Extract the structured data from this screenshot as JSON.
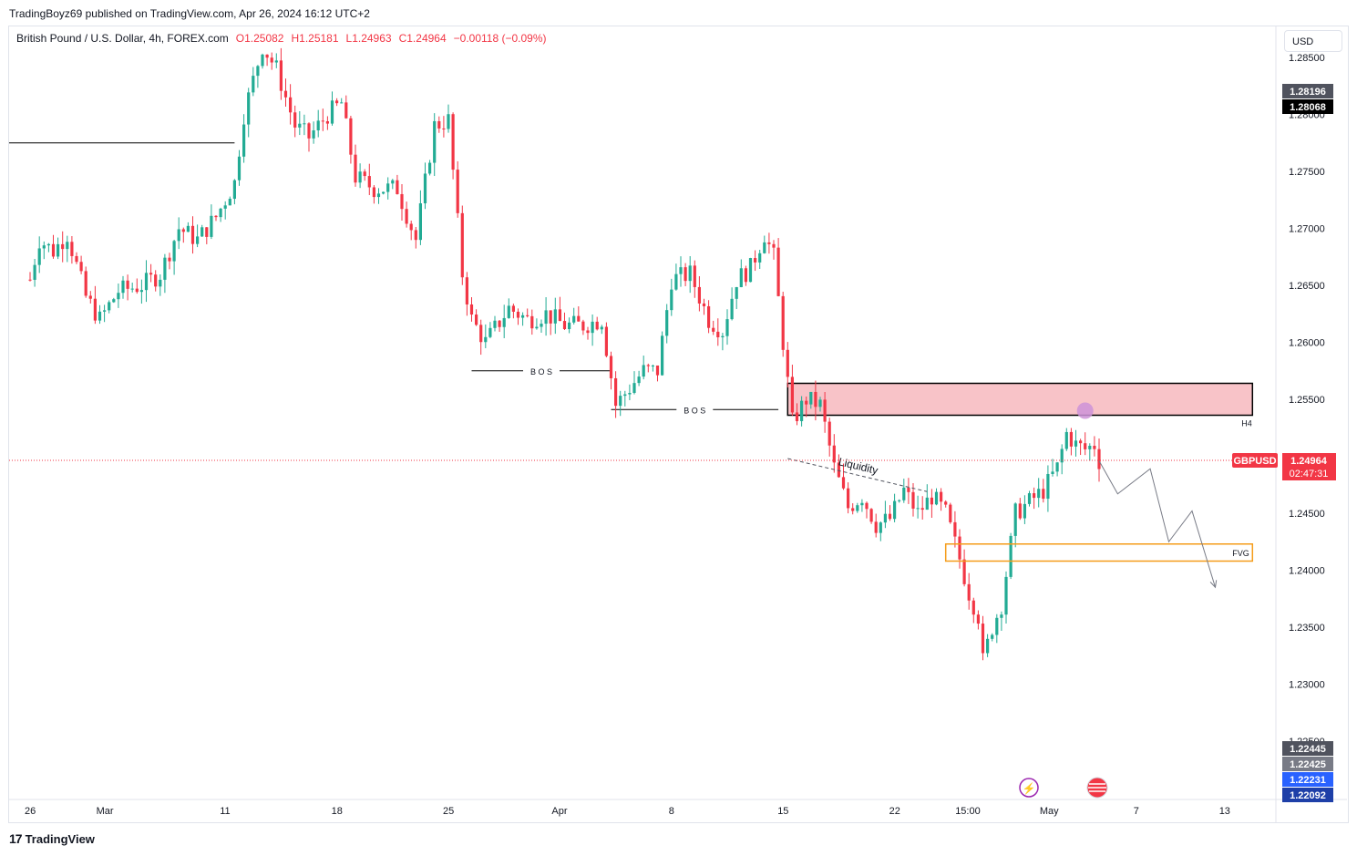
{
  "header": {
    "publisher_line": "TradingBoyz69 published on TradingView.com, Apr 26, 2024 16:12 UTC+2"
  },
  "legend": {
    "symbol": "British Pound / U.S. Dollar, 4h, FOREX.com",
    "open": "O1.25082",
    "high": "H1.25181",
    "low": "L1.24963",
    "close": "C1.24964",
    "change": "−0.00118 (−0.09%)"
  },
  "currency_button": "USD",
  "footer": {
    "brand": "TradingView",
    "logo_glyph": "17"
  },
  "colors": {
    "up": "#22ab94",
    "down": "#f23645",
    "zone_fill": "#f8c3c8",
    "fvg": "#f59c1a",
    "accent_blue": "#2962ff"
  },
  "chart_data": {
    "type": "candlestick",
    "y_axis": {
      "range": [
        1.2205,
        1.2878
      ],
      "ticks": [
        "1.28500",
        "1.28000",
        "1.27500",
        "1.27000",
        "1.26500",
        "1.26000",
        "1.25500",
        "1.25000",
        "1.24500",
        "1.24000",
        "1.23500",
        "1.23000",
        "1.22500"
      ]
    },
    "x_axis": {
      "ticks": [
        {
          "label": "26",
          "index": 0
        },
        {
          "label": "Mar",
          "index": 16
        },
        {
          "label": "11",
          "index": 42
        },
        {
          "label": "18",
          "index": 66
        },
        {
          "label": "25",
          "index": 90
        },
        {
          "label": "Apr",
          "index": 114
        },
        {
          "label": "8",
          "index": 138
        },
        {
          "label": "15",
          "index": 162
        },
        {
          "label": "22",
          "index": 186
        },
        {
          "label": "15:00",
          "index": 202
        },
        {
          "label": "May",
          "index": 219
        },
        {
          "label": "7",
          "index": 238
        },
        {
          "label": "13",
          "index": 257
        }
      ]
    },
    "price_labels": [
      {
        "text": "1.28196",
        "value": 1.28196,
        "bg": "#50535e"
      },
      {
        "text": "1.28068",
        "value": 1.28068,
        "bg": "#000000"
      },
      {
        "text": "1.22445",
        "value": 1.22445,
        "bg": "#50535e"
      },
      {
        "text": "1.22425",
        "value": 1.22425,
        "bg": "#787b86"
      },
      {
        "text": "1.22231",
        "value": 1.22231,
        "bg": "#2962ff"
      },
      {
        "text": "1.22092",
        "value": 1.22092,
        "bg": "#1e3fa8"
      }
    ],
    "current": {
      "symbol": "GBPUSD",
      "price": "1.24964",
      "value": 1.24964,
      "countdown": "02:47:31"
    },
    "anchors": [
      [
        0,
        1.2655
      ],
      [
        2,
        1.269
      ],
      [
        5,
        1.268
      ],
      [
        8,
        1.2695
      ],
      [
        12,
        1.264
      ],
      [
        15,
        1.262
      ],
      [
        19,
        1.2645
      ],
      [
        24,
        1.265
      ],
      [
        28,
        1.266
      ],
      [
        32,
        1.27
      ],
      [
        36,
        1.269
      ],
      [
        40,
        1.271
      ],
      [
        44,
        1.274
      ],
      [
        46,
        1.28
      ],
      [
        50,
        1.286
      ],
      [
        53,
        1.284
      ],
      [
        57,
        1.279
      ],
      [
        60,
        1.278
      ],
      [
        64,
        1.28
      ],
      [
        67,
        1.281
      ],
      [
        70,
        1.2745
      ],
      [
        74,
        1.2735
      ],
      [
        79,
        1.2735
      ],
      [
        83,
        1.269
      ],
      [
        87,
        1.279
      ],
      [
        90,
        1.2795
      ],
      [
        93,
        1.266
      ],
      [
        95,
        1.262
      ],
      [
        98,
        1.26
      ],
      [
        103,
        1.263
      ],
      [
        107,
        1.262
      ],
      [
        111,
        1.2625
      ],
      [
        115,
        1.2615
      ],
      [
        119,
        1.2615
      ],
      [
        123,
        1.262
      ],
      [
        126,
        1.2545
      ],
      [
        129,
        1.256
      ],
      [
        132,
        1.2575
      ],
      [
        135,
        1.2575
      ],
      [
        138,
        1.2655
      ],
      [
        142,
        1.266
      ],
      [
        146,
        1.262
      ],
      [
        149,
        1.261
      ],
      [
        152,
        1.2655
      ],
      [
        155,
        1.2665
      ],
      [
        158,
        1.2695
      ],
      [
        160,
        1.2675
      ],
      [
        162,
        1.26
      ],
      [
        164,
        1.253
      ],
      [
        167,
        1.255
      ],
      [
        170,
        1.2545
      ],
      [
        173,
        1.249
      ],
      [
        176,
        1.2455
      ],
      [
        179,
        1.2465
      ],
      [
        182,
        1.244
      ],
      [
        185,
        1.2445
      ],
      [
        188,
        1.247
      ],
      [
        191,
        1.245
      ],
      [
        194,
        1.2465
      ],
      [
        197,
        1.245
      ],
      [
        200,
        1.241
      ],
      [
        202,
        1.238
      ],
      [
        204,
        1.236
      ],
      [
        205,
        1.232
      ],
      [
        207,
        1.235
      ],
      [
        209,
        1.237
      ],
      [
        212,
        1.245
      ],
      [
        215,
        1.246
      ],
      [
        218,
        1.247
      ],
      [
        221,
        1.249
      ],
      [
        223,
        1.252
      ],
      [
        225,
        1.251
      ],
      [
        227,
        1.2506
      ],
      [
        229,
        1.251
      ],
      [
        230,
        1.2496
      ]
    ],
    "annotations": {
      "resistance_line": {
        "value": 1.2775,
        "from_index": 0,
        "to_index": 44
      },
      "bos": [
        {
          "label": "B O S",
          "value": 1.2575,
          "from_index": 95,
          "to_index": 125
        },
        {
          "label": "B O S",
          "value": 1.2541,
          "from_index": 125,
          "to_index": 161
        }
      ],
      "supply_zone": {
        "label": "H4",
        "y1": 1.2564,
        "y2": 1.2536,
        "from_index": 163,
        "to_index": 263
      },
      "fvg": {
        "label": "FVG",
        "y1": 1.2423,
        "y2": 1.2408,
        "from_index": 197,
        "to_index": 263
      },
      "liquidity": {
        "label": "Liquidity",
        "from": [
          163,
          1.2498
        ],
        "to": [
          193,
          1.2469
        ]
      },
      "projection": [
        [
          230,
          1.2496
        ],
        [
          234,
          1.2467
        ],
        [
          241,
          1.2489
        ],
        [
          245,
          1.2425
        ],
        [
          250,
          1.2452
        ],
        [
          255,
          1.2385
        ]
      ],
      "touch_marker": {
        "index": 227,
        "value": 1.254
      }
    }
  }
}
